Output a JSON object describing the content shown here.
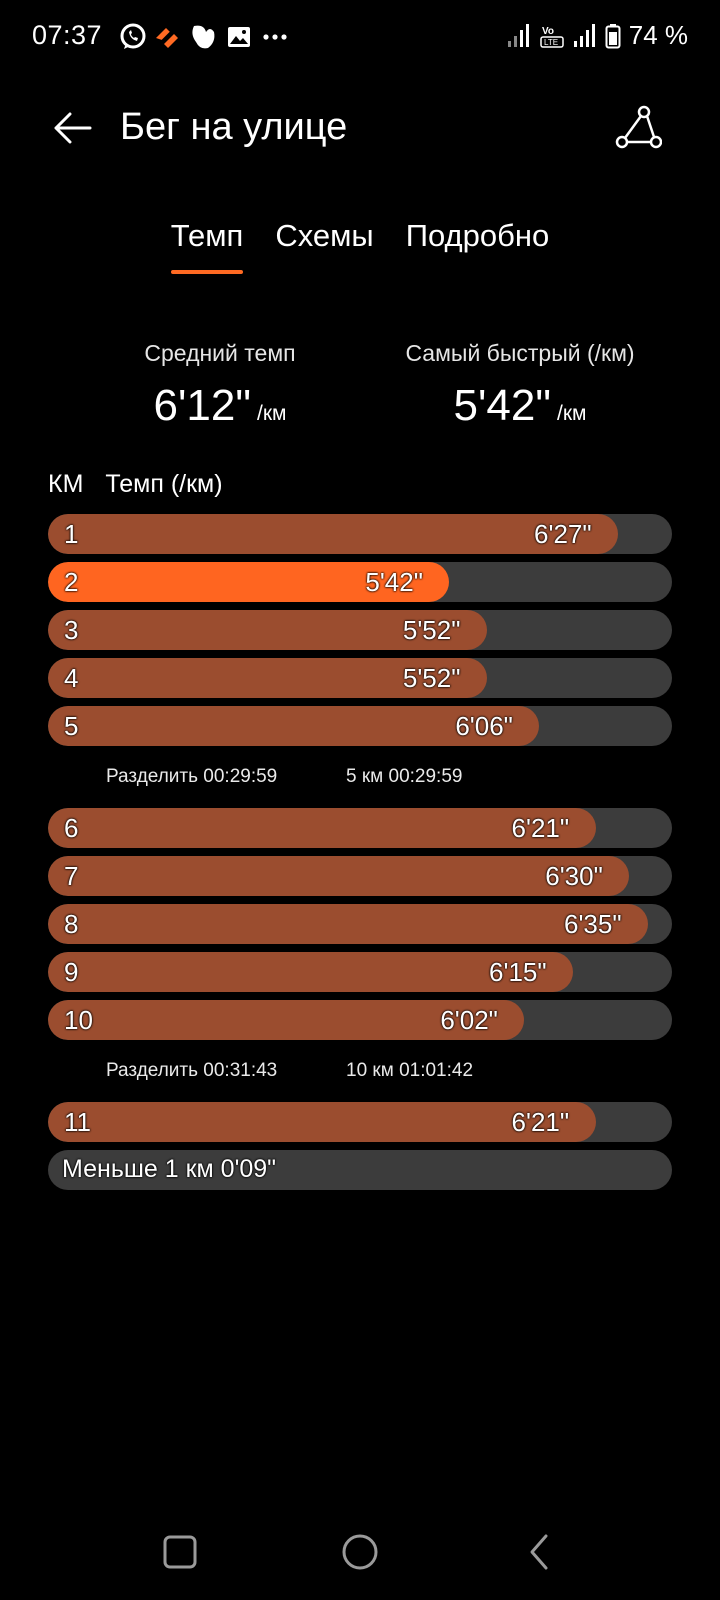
{
  "status_bar": {
    "time": "07:37",
    "battery": "74 %",
    "icons_left": [
      "whatsapp-icon",
      "strava-icon",
      "messenger-icon",
      "image-icon",
      "more-icon"
    ],
    "icons_right": [
      "signal-icon",
      "volte-icon",
      "signal-icon",
      "battery-icon"
    ]
  },
  "header": {
    "title": "Бег на улице",
    "back_icon": "arrow-left-icon",
    "route_icon": "route-icon"
  },
  "tabs": [
    {
      "label": "Темп",
      "active": true
    },
    {
      "label": "Схемы",
      "active": false
    },
    {
      "label": "Подробно",
      "active": false
    }
  ],
  "summary": {
    "avg_label": "Средний темп",
    "avg_value": "6'12\"",
    "avg_unit": "/км",
    "best_label": "Самый быстрый (/км)",
    "best_value": "5'42\"",
    "best_unit": "/км"
  },
  "splits_header": {
    "km": "КМ",
    "pace": "Темп (/км)"
  },
  "splits": [
    {
      "km": "1",
      "pace": "6'27\"",
      "seconds": 387
    },
    {
      "km": "2",
      "pace": "5'42\"",
      "seconds": 342,
      "fastest": true
    },
    {
      "km": "3",
      "pace": "5'52\"",
      "seconds": 352
    },
    {
      "km": "4",
      "pace": "5'52\"",
      "seconds": 352
    },
    {
      "km": "5",
      "pace": "6'06\"",
      "seconds": 366
    },
    {
      "km": "6",
      "pace": "6'21\"",
      "seconds": 381
    },
    {
      "km": "7",
      "pace": "6'30\"",
      "seconds": 390
    },
    {
      "km": "8",
      "pace": "6'35\"",
      "seconds": 395
    },
    {
      "km": "9",
      "pace": "6'15\"",
      "seconds": 375
    },
    {
      "km": "10",
      "pace": "6'02\"",
      "seconds": 362
    },
    {
      "km": "11",
      "pace": "6'21\"",
      "seconds": 381
    }
  ],
  "split_summaries": [
    {
      "split": "Разделить 00:29:59",
      "total": "5 км 00:29:59"
    },
    {
      "split": "Разделить 00:31:43",
      "total": "10 км 01:01:42"
    }
  ],
  "remainder": "Меньше 1 км 0'09\"",
  "colors": {
    "bar": "#9b4d2f",
    "bar_fastest": "#ff6520",
    "track": "#3c3c3c",
    "accent": "#ff6a23"
  },
  "nav_bar": [
    "recents-square-icon",
    "home-circle-icon",
    "back-triangle-icon"
  ]
}
